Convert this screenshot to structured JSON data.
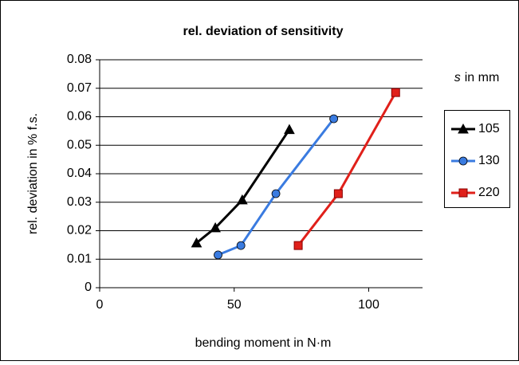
{
  "chart_data": {
    "type": "line",
    "title": "rel. deviation of sensitivity",
    "x_label": "bending moment in N·m",
    "y_label": "rel. deviation in % f.s.",
    "legend_title_symbol": "s",
    "legend_title_unit": "in mm",
    "legend": "right",
    "grid": true,
    "xlim": [
      0,
      120
    ],
    "xticks": [
      0,
      50,
      100
    ],
    "ylim": [
      0,
      0.08
    ],
    "yticks": [
      0,
      0.01,
      0.02,
      0.03,
      0.04,
      0.05,
      0.06,
      0.07,
      0.08
    ],
    "series": [
      {
        "name": "105",
        "color": "#000000",
        "marker": "triangle",
        "x": [
          36,
          43,
          53,
          70.5
        ],
        "values": [
          0.0157,
          0.021,
          0.0308,
          0.0555
        ]
      },
      {
        "name": "130",
        "color": "#3a7be0",
        "marker": "circle",
        "x": [
          44,
          52.5,
          65.5,
          87
        ],
        "values": [
          0.0115,
          0.0148,
          0.033,
          0.0593
        ]
      },
      {
        "name": "220",
        "color": "#e0201a",
        "marker": "square",
        "x": [
          73.8,
          88.7,
          110
        ],
        "values": [
          0.0148,
          0.033,
          0.0685
        ]
      }
    ]
  }
}
